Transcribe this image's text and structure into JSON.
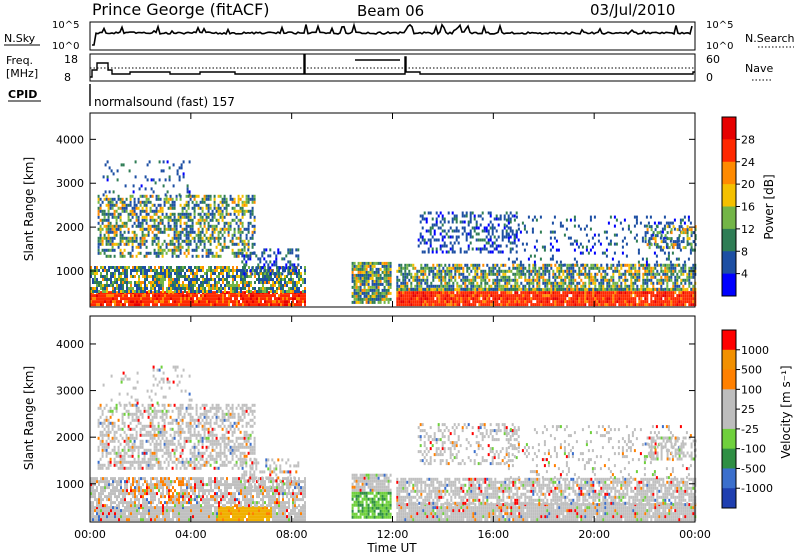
{
  "header": {
    "station": "Prince George (fitACF)",
    "beam": "Beam 06",
    "date": "03/Jul/2010"
  },
  "panels": {
    "nsky_label": "N.Sky",
    "nsearch_label": "N.Search",
    "nsky_ticks": [
      "10^5",
      "10^0"
    ],
    "nsearch_ticks": [
      "10^5",
      "10^0"
    ],
    "freq_label_line1": "Freq.",
    "freq_label_line2": "[MHz]",
    "freq_ticks": [
      "18",
      "8"
    ],
    "nave_label": "Nave",
    "nave_ticks": [
      "60",
      "0"
    ],
    "cpid_label": "CPID",
    "cpid_text": "normalsound (fast) 157"
  },
  "chart_data": [
    {
      "type": "heatmap",
      "name": "power",
      "ylabel": "Slant Range [km]",
      "xlabel": "",
      "yticks": [
        "1000",
        "2000",
        "3000",
        "4000"
      ],
      "ylim": [
        180,
        4600
      ],
      "xlim_hours": [
        0,
        24
      ],
      "colorbar": {
        "label": "Power [dB]",
        "ticks": [
          "4",
          "8",
          "12",
          "16",
          "20",
          "24",
          "28"
        ],
        "range": [
          0,
          32
        ],
        "colors": [
          "#0000ff",
          "#1d4fa3",
          "#2f7d55",
          "#73b547",
          "#f4c000",
          "#ff8a00",
          "#ff2800",
          "#e60000"
        ]
      },
      "data_gaps_hours": [
        [
          8.55,
          10.3
        ],
        [
          11.95,
          12.1
        ]
      ]
    },
    {
      "type": "heatmap",
      "name": "velocity",
      "ylabel": "Slant Range [km]",
      "xlabel": "Time UT",
      "yticks": [
        "1000",
        "2000",
        "3000",
        "4000"
      ],
      "ylim": [
        180,
        4600
      ],
      "xlim_hours": [
        0,
        24
      ],
      "xticks": [
        "00:00",
        "04:00",
        "08:00",
        "12:00",
        "16:00",
        "20:00",
        "00:00"
      ],
      "colorbar": {
        "label": "Velocity [m s⁻¹]",
        "ticks": [
          "1000",
          "500",
          "100",
          "25",
          "-25",
          "-100",
          "-500",
          "-1000"
        ],
        "colors": [
          "#1f3fb0",
          "#3b6fcc",
          "#2f8f44",
          "#6fd03c",
          "#bdbdbd",
          "#bdbdbd",
          "#ff8000",
          "#f29000",
          "#ff0000"
        ]
      },
      "data_gaps_hours": [
        [
          8.55,
          10.3
        ],
        [
          11.95,
          12.1
        ]
      ]
    }
  ]
}
